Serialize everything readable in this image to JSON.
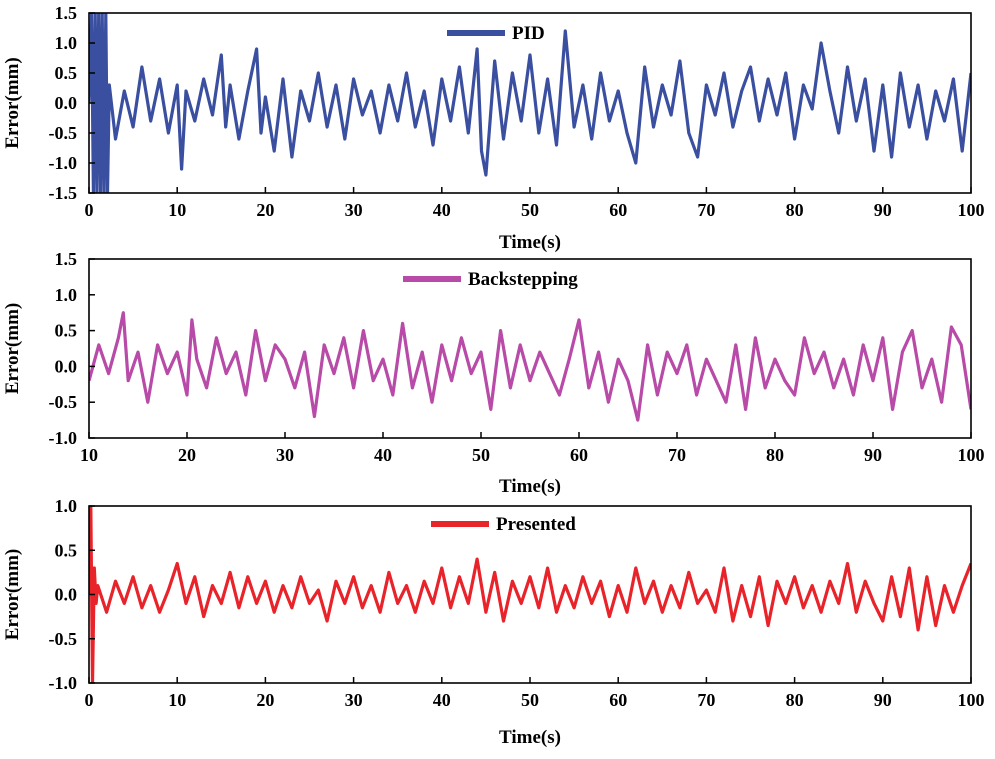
{
  "chart_data": [
    {
      "type": "line",
      "xlabel": "Time(s)",
      "ylabel": "Error(mm)",
      "xlim": [
        0,
        100
      ],
      "ylim": [
        -1.5,
        1.5
      ],
      "xticks": [
        0,
        10,
        20,
        30,
        40,
        50,
        60,
        70,
        80,
        90,
        100
      ],
      "yticks": [
        -1.5,
        -1.0,
        -0.5,
        0.0,
        0.5,
        1.0,
        1.5
      ],
      "ytick_labels": [
        "-1.5",
        "-1.0",
        "-0.5",
        "0.0",
        "0.5",
        "1.0",
        "1.5"
      ],
      "legend": "top-center",
      "grid": false,
      "series": [
        {
          "name": "PID",
          "color": "#3a4fa0",
          "x": [
            0,
            0.3,
            0.5,
            0.7,
            0.9,
            1.1,
            1.3,
            1.5,
            1.7,
            1.9,
            2.1,
            2.3,
            3,
            4,
            5,
            6,
            7,
            8,
            9,
            10,
            10.5,
            11,
            12,
            13,
            14,
            15,
            15.5,
            16,
            17,
            18,
            19,
            19.5,
            20,
            21,
            22,
            23,
            24,
            25,
            26,
            27,
            28,
            29,
            30,
            31,
            32,
            33,
            34,
            35,
            36,
            37,
            38,
            39,
            40,
            41,
            42,
            43,
            44,
            44.5,
            45,
            46,
            47,
            48,
            49,
            50,
            51,
            52,
            53,
            54,
            55,
            56,
            57,
            58,
            59,
            60,
            61,
            62,
            63,
            64,
            65,
            66,
            67,
            68,
            69,
            70,
            71,
            72,
            73,
            74,
            75,
            76,
            77,
            78,
            79,
            80,
            81,
            82,
            83,
            84,
            85,
            86,
            87,
            88,
            89,
            90,
            91,
            92,
            93,
            94,
            95,
            96,
            97,
            98,
            99,
            100
          ],
          "y": [
            0,
            1.5,
            -1.5,
            1.5,
            -1.5,
            1.5,
            -1.5,
            1.5,
            -1.5,
            1.5,
            -1.5,
            0.3,
            -0.6,
            0.2,
            -0.4,
            0.6,
            -0.3,
            0.4,
            -0.5,
            0.3,
            -1.1,
            0.2,
            -0.3,
            0.4,
            -0.2,
            0.8,
            -0.4,
            0.3,
            -0.6,
            0.2,
            0.9,
            -0.5,
            0.1,
            -0.8,
            0.4,
            -0.9,
            0.2,
            -0.3,
            0.5,
            -0.4,
            0.3,
            -0.6,
            0.4,
            -0.2,
            0.2,
            -0.5,
            0.3,
            -0.3,
            0.5,
            -0.4,
            0.2,
            -0.7,
            0.4,
            -0.3,
            0.6,
            -0.5,
            0.9,
            -0.8,
            -1.2,
            0.7,
            -0.6,
            0.5,
            -0.3,
            0.8,
            -0.5,
            0.4,
            -0.7,
            1.2,
            -0.4,
            0.3,
            -0.6,
            0.5,
            -0.3,
            0.2,
            -0.5,
            -1.0,
            0.6,
            -0.4,
            0.3,
            -0.2,
            0.7,
            -0.5,
            -0.9,
            0.3,
            -0.2,
            0.5,
            -0.4,
            0.2,
            0.6,
            -0.3,
            0.4,
            -0.2,
            0.5,
            -0.6,
            0.3,
            -0.1,
            1.0,
            0.2,
            -0.5,
            0.6,
            -0.3,
            0.4,
            -0.8,
            0.3,
            -0.9,
            0.5,
            -0.4,
            0.3,
            -0.6,
            0.2,
            -0.3,
            0.4,
            -0.8,
            0.5
          ]
        }
      ]
    },
    {
      "type": "line",
      "xlabel": "Time(s)",
      "ylabel": "Error(mm)",
      "xlim": [
        10,
        100
      ],
      "ylim": [
        -1.0,
        1.5
      ],
      "xticks": [
        10,
        20,
        30,
        40,
        50,
        60,
        70,
        80,
        90,
        100
      ],
      "yticks": [
        -1.0,
        -0.5,
        0.0,
        0.5,
        1.0,
        1.5
      ],
      "ytick_labels": [
        "-1.0",
        "-0.5",
        "0.0",
        "0.5",
        "1.0",
        "1.5"
      ],
      "legend": "top-center",
      "grid": false,
      "series": [
        {
          "name": "Backstepping",
          "color": "#b84aa8",
          "x": [
            10,
            11,
            12,
            13,
            13.5,
            14,
            15,
            16,
            17,
            18,
            19,
            20,
            20.5,
            21,
            22,
            23,
            24,
            25,
            26,
            27,
            28,
            29,
            30,
            31,
            32,
            33,
            34,
            35,
            36,
            37,
            38,
            39,
            40,
            41,
            42,
            43,
            44,
            45,
            46,
            47,
            48,
            49,
            50,
            51,
            52,
            53,
            54,
            55,
            56,
            57,
            58,
            59,
            60,
            61,
            62,
            63,
            64,
            65,
            66,
            67,
            68,
            69,
            70,
            71,
            72,
            73,
            74,
            75,
            76,
            77,
            78,
            79,
            80,
            81,
            82,
            83,
            84,
            85,
            86,
            87,
            88,
            89,
            90,
            91,
            92,
            93,
            94,
            95,
            96,
            97,
            98,
            99,
            100
          ],
          "y": [
            -0.2,
            0.3,
            -0.1,
            0.4,
            0.75,
            -0.2,
            0.2,
            -0.5,
            0.3,
            -0.1,
            0.2,
            -0.4,
            0.65,
            0.1,
            -0.3,
            0.4,
            -0.1,
            0.2,
            -0.4,
            0.5,
            -0.2,
            0.3,
            0.1,
            -0.3,
            0.2,
            -0.7,
            0.3,
            -0.1,
            0.4,
            -0.3,
            0.5,
            -0.2,
            0.1,
            -0.4,
            0.6,
            -0.3,
            0.2,
            -0.5,
            0.3,
            -0.2,
            0.4,
            -0.1,
            0.2,
            -0.6,
            0.5,
            -0.3,
            0.3,
            -0.2,
            0.2,
            -0.1,
            -0.4,
            0.1,
            0.65,
            -0.3,
            0.2,
            -0.5,
            0.1,
            -0.2,
            -0.75,
            0.3,
            -0.4,
            0.2,
            -0.1,
            0.3,
            -0.4,
            0.1,
            -0.2,
            -0.5,
            0.3,
            -0.6,
            0.4,
            -0.3,
            0.1,
            -0.2,
            -0.4,
            0.4,
            -0.1,
            0.2,
            -0.3,
            0.1,
            -0.4,
            0.3,
            -0.2,
            0.4,
            -0.6,
            0.2,
            0.5,
            -0.3,
            0.1,
            -0.5,
            0.55,
            0.3,
            -0.6
          ]
        }
      ]
    },
    {
      "type": "line",
      "xlabel": "Time(s)",
      "ylabel": "Error(mm)",
      "xlim": [
        0,
        100
      ],
      "ylim": [
        -1.0,
        1.0
      ],
      "xticks": [
        0,
        10,
        20,
        30,
        40,
        50,
        60,
        70,
        80,
        90,
        100
      ],
      "yticks": [
        -1.0,
        -0.5,
        0.0,
        0.5,
        1.0
      ],
      "ytick_labels": [
        "-1.0",
        "-0.5",
        "0.0",
        "0.5",
        "1.0"
      ],
      "legend": "top-center",
      "grid": false,
      "series": [
        {
          "name": "Presented",
          "color": "#e8232a",
          "x": [
            0,
            0.2,
            0.4,
            0.6,
            0.8,
            1,
            2,
            3,
            4,
            5,
            6,
            7,
            8,
            9,
            10,
            11,
            12,
            13,
            14,
            15,
            16,
            17,
            18,
            19,
            20,
            21,
            22,
            23,
            24,
            25,
            26,
            27,
            28,
            29,
            30,
            31,
            32,
            33,
            34,
            35,
            36,
            37,
            38,
            39,
            40,
            41,
            42,
            43,
            44,
            45,
            46,
            47,
            48,
            49,
            50,
            51,
            52,
            53,
            54,
            55,
            56,
            57,
            58,
            59,
            60,
            61,
            62,
            63,
            64,
            65,
            66,
            67,
            68,
            69,
            70,
            71,
            72,
            73,
            74,
            75,
            76,
            77,
            78,
            79,
            80,
            81,
            82,
            83,
            84,
            85,
            86,
            87,
            88,
            89,
            90,
            91,
            92,
            93,
            94,
            95,
            96,
            97,
            98,
            99,
            100
          ],
          "y": [
            0,
            1.0,
            -1.0,
            0.3,
            -0.1,
            0.1,
            -0.2,
            0.15,
            -0.1,
            0.2,
            -0.15,
            0.1,
            -0.2,
            0.05,
            0.35,
            -0.1,
            0.2,
            -0.25,
            0.1,
            -0.1,
            0.25,
            -0.15,
            0.2,
            -0.1,
            0.15,
            -0.2,
            0.1,
            -0.15,
            0.2,
            -0.1,
            0.05,
            -0.3,
            0.15,
            -0.1,
            0.2,
            -0.15,
            0.1,
            -0.2,
            0.25,
            -0.1,
            0.1,
            -0.2,
            0.15,
            -0.1,
            0.3,
            -0.15,
            0.2,
            -0.1,
            0.4,
            -0.2,
            0.25,
            -0.3,
            0.15,
            -0.1,
            0.2,
            -0.15,
            0.3,
            -0.2,
            0.1,
            -0.15,
            0.2,
            -0.1,
            0.15,
            -0.25,
            0.1,
            -0.2,
            0.3,
            -0.1,
            0.15,
            -0.2,
            0.1,
            -0.15,
            0.25,
            -0.1,
            0.05,
            -0.2,
            0.3,
            -0.3,
            0.1,
            -0.25,
            0.2,
            -0.35,
            0.15,
            -0.1,
            0.2,
            -0.15,
            0.1,
            -0.2,
            0.15,
            -0.1,
            0.35,
            -0.2,
            0.15,
            -0.1,
            -0.3,
            0.2,
            -0.25,
            0.3,
            -0.4,
            0.2,
            -0.35,
            0.1,
            -0.2,
            0.1,
            0.35
          ]
        }
      ]
    }
  ]
}
